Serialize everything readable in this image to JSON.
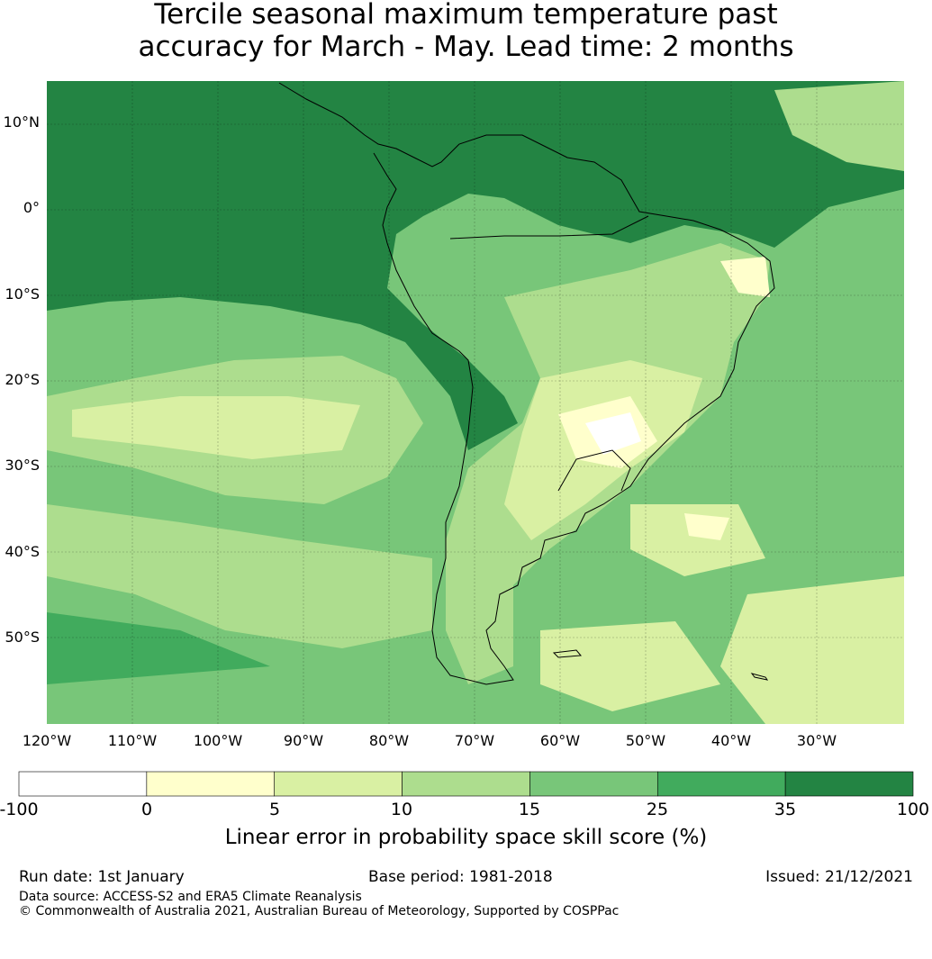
{
  "title": {
    "line1": "Tercile seasonal maximum temperature past",
    "line2": "accuracy for March - May. Lead time: 2 months"
  },
  "map": {
    "lat_labels": [
      "10°N",
      "0°",
      "10°S",
      "20°S",
      "30°S",
      "40°S",
      "50°S"
    ],
    "lon_labels": [
      "120°W",
      "110°W",
      "100°W",
      "90°W",
      "80°W",
      "70°W",
      "60°W",
      "50°W",
      "40°W",
      "30°W"
    ]
  },
  "colorbar": {
    "colors": [
      "#ffffff",
      "#ffffcc",
      "#d9f0a3",
      "#addd8e",
      "#78c679",
      "#41ab5d",
      "#238443"
    ],
    "tick_labels": [
      "-100",
      "0",
      "5",
      "10",
      "15",
      "25",
      "35",
      "100"
    ],
    "label": "Linear error in probability space skill score (%)"
  },
  "footer": {
    "run_date": "Run date: 1st January",
    "base_period": "Base period: 1981-2018",
    "issued": "Issued: 21/12/2021",
    "data_source": "Data source: ACCESS-S2 and ERA5 Climate Reanalysis",
    "copyright": "© Commonwealth of Australia 2021, Australian Bureau of Meteorology, Supported by COSPPac"
  }
}
